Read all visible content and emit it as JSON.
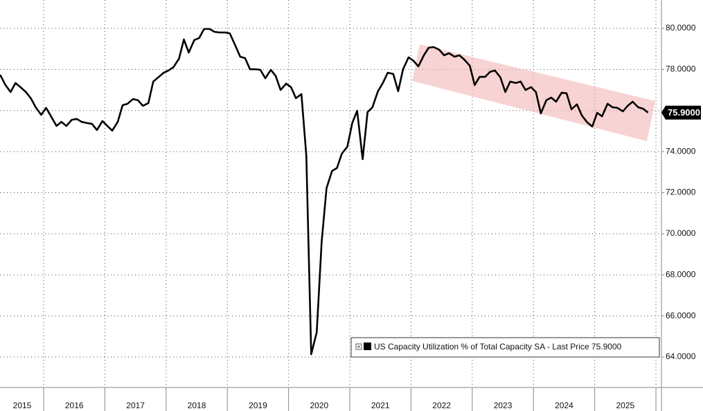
{
  "chart_data": {
    "type": "line",
    "xlim": [
      2015.287,
      2026.09
    ],
    "ylim": [
      62.52,
      81.38
    ],
    "yticks": [
      {
        "value": 64,
        "label": "64.0000"
      },
      {
        "value": 66,
        "label": "66.0000"
      },
      {
        "value": 68,
        "label": "68.0000"
      },
      {
        "value": 70,
        "label": "70.0000"
      },
      {
        "value": 72,
        "label": "72.0000"
      },
      {
        "value": 74,
        "label": "74.0000"
      },
      {
        "value": 76,
        "label": "76.0000"
      },
      {
        "value": 78,
        "label": "78.0000"
      },
      {
        "value": 80,
        "label": "80.0000"
      }
    ],
    "xticks": [
      {
        "value": 2015.5,
        "label": "2015"
      },
      {
        "value": 2016.5,
        "label": "2016"
      },
      {
        "value": 2017.5,
        "label": "2017"
      },
      {
        "value": 2018.5,
        "label": "2018"
      },
      {
        "value": 2019.5,
        "label": "2019"
      },
      {
        "value": 2020.5,
        "label": "2020"
      },
      {
        "value": 2021.5,
        "label": "2021"
      },
      {
        "value": 2022.5,
        "label": "2022"
      },
      {
        "value": 2023.5,
        "label": "2023"
      },
      {
        "value": 2024.5,
        "label": "2024"
      },
      {
        "value": 2025.5,
        "label": "2025"
      }
    ],
    "xgrid": [
      2016,
      2017,
      2018,
      2019,
      2020,
      2021,
      2022,
      2023,
      2024,
      2025,
      2026
    ],
    "grid": true,
    "legend": "bottom-right",
    "series": [
      {
        "name": "US Capacity Utilization % of Total Capacity SA - Last Price 75.9000",
        "color": "#000000",
        "x": [
          2015.29,
          2015.37,
          2015.46,
          2015.54,
          2015.62,
          2015.71,
          2015.79,
          2015.87,
          2015.96,
          2016.04,
          2016.12,
          2016.21,
          2016.29,
          2016.37,
          2016.46,
          2016.54,
          2016.62,
          2016.71,
          2016.79,
          2016.87,
          2016.96,
          2017.04,
          2017.12,
          2017.21,
          2017.29,
          2017.37,
          2017.46,
          2017.54,
          2017.62,
          2017.71,
          2017.79,
          2017.87,
          2017.96,
          2018.04,
          2018.12,
          2018.21,
          2018.29,
          2018.37,
          2018.46,
          2018.54,
          2018.62,
          2018.71,
          2018.79,
          2018.87,
          2018.96,
          2019.04,
          2019.12,
          2019.21,
          2019.29,
          2019.37,
          2019.46,
          2019.54,
          2019.62,
          2019.71,
          2019.79,
          2019.87,
          2019.96,
          2020.04,
          2020.12,
          2020.21,
          2020.29,
          2020.37,
          2020.46,
          2020.54,
          2020.62,
          2020.71,
          2020.79,
          2020.87,
          2020.96,
          2021.04,
          2021.12,
          2021.21,
          2021.29,
          2021.37,
          2021.46,
          2021.54,
          2021.62,
          2021.71,
          2021.79,
          2021.87,
          2021.96,
          2022.04,
          2022.12,
          2022.21,
          2022.29,
          2022.37,
          2022.46,
          2022.54,
          2022.62,
          2022.71,
          2022.79,
          2022.87,
          2022.96,
          2023.04,
          2023.12,
          2023.21,
          2023.29,
          2023.37,
          2023.46,
          2023.54,
          2023.62,
          2023.71,
          2023.79,
          2023.87,
          2023.96,
          2024.04,
          2024.12,
          2024.21,
          2024.29,
          2024.37,
          2024.46,
          2024.54,
          2024.62,
          2024.71,
          2024.79,
          2024.87,
          2024.96,
          2025.04,
          2025.12,
          2025.21,
          2025.29,
          2025.37,
          2025.46,
          2025.54,
          2025.62,
          2025.71,
          2025.79,
          2025.87
        ],
        "values": [
          77.74,
          77.27,
          76.9,
          77.34,
          77.14,
          76.9,
          76.6,
          76.16,
          75.79,
          76.13,
          75.72,
          75.25,
          75.45,
          75.25,
          75.55,
          75.59,
          75.45,
          75.39,
          75.35,
          75.05,
          75.49,
          75.25,
          75.02,
          75.45,
          76.26,
          76.33,
          76.56,
          76.5,
          76.23,
          76.36,
          77.41,
          77.61,
          77.84,
          77.95,
          78.11,
          78.52,
          79.46,
          78.82,
          79.43,
          79.53,
          79.97,
          79.97,
          79.83,
          79.8,
          79.8,
          79.76,
          79.23,
          78.62,
          78.55,
          78.01,
          78.01,
          77.98,
          77.57,
          77.98,
          77.68,
          77.0,
          77.31,
          77.14,
          76.6,
          76.8,
          73.8,
          64.14,
          65.21,
          69.59,
          72.22,
          73.06,
          73.2,
          73.9,
          74.24,
          75.39,
          75.99,
          73.63,
          75.92,
          76.16,
          76.94,
          77.34,
          77.84,
          77.78,
          76.94,
          78.01,
          78.59,
          78.42,
          78.15,
          78.69,
          79.06,
          79.09,
          78.96,
          78.69,
          78.79,
          78.62,
          78.69,
          78.48,
          78.18,
          77.24,
          77.64,
          77.64,
          77.88,
          77.95,
          77.61,
          76.9,
          77.41,
          77.34,
          77.41,
          77.0,
          77.14,
          76.9,
          75.86,
          76.5,
          76.63,
          76.43,
          76.87,
          76.84,
          76.06,
          76.3,
          75.76,
          75.45,
          75.22,
          75.89,
          75.72,
          76.33,
          76.16,
          76.13,
          75.96,
          76.23,
          76.43,
          76.16,
          76.09,
          75.9
        ]
      }
    ],
    "last_price": {
      "value": 75.9,
      "label": "75.9000"
    }
  }
}
